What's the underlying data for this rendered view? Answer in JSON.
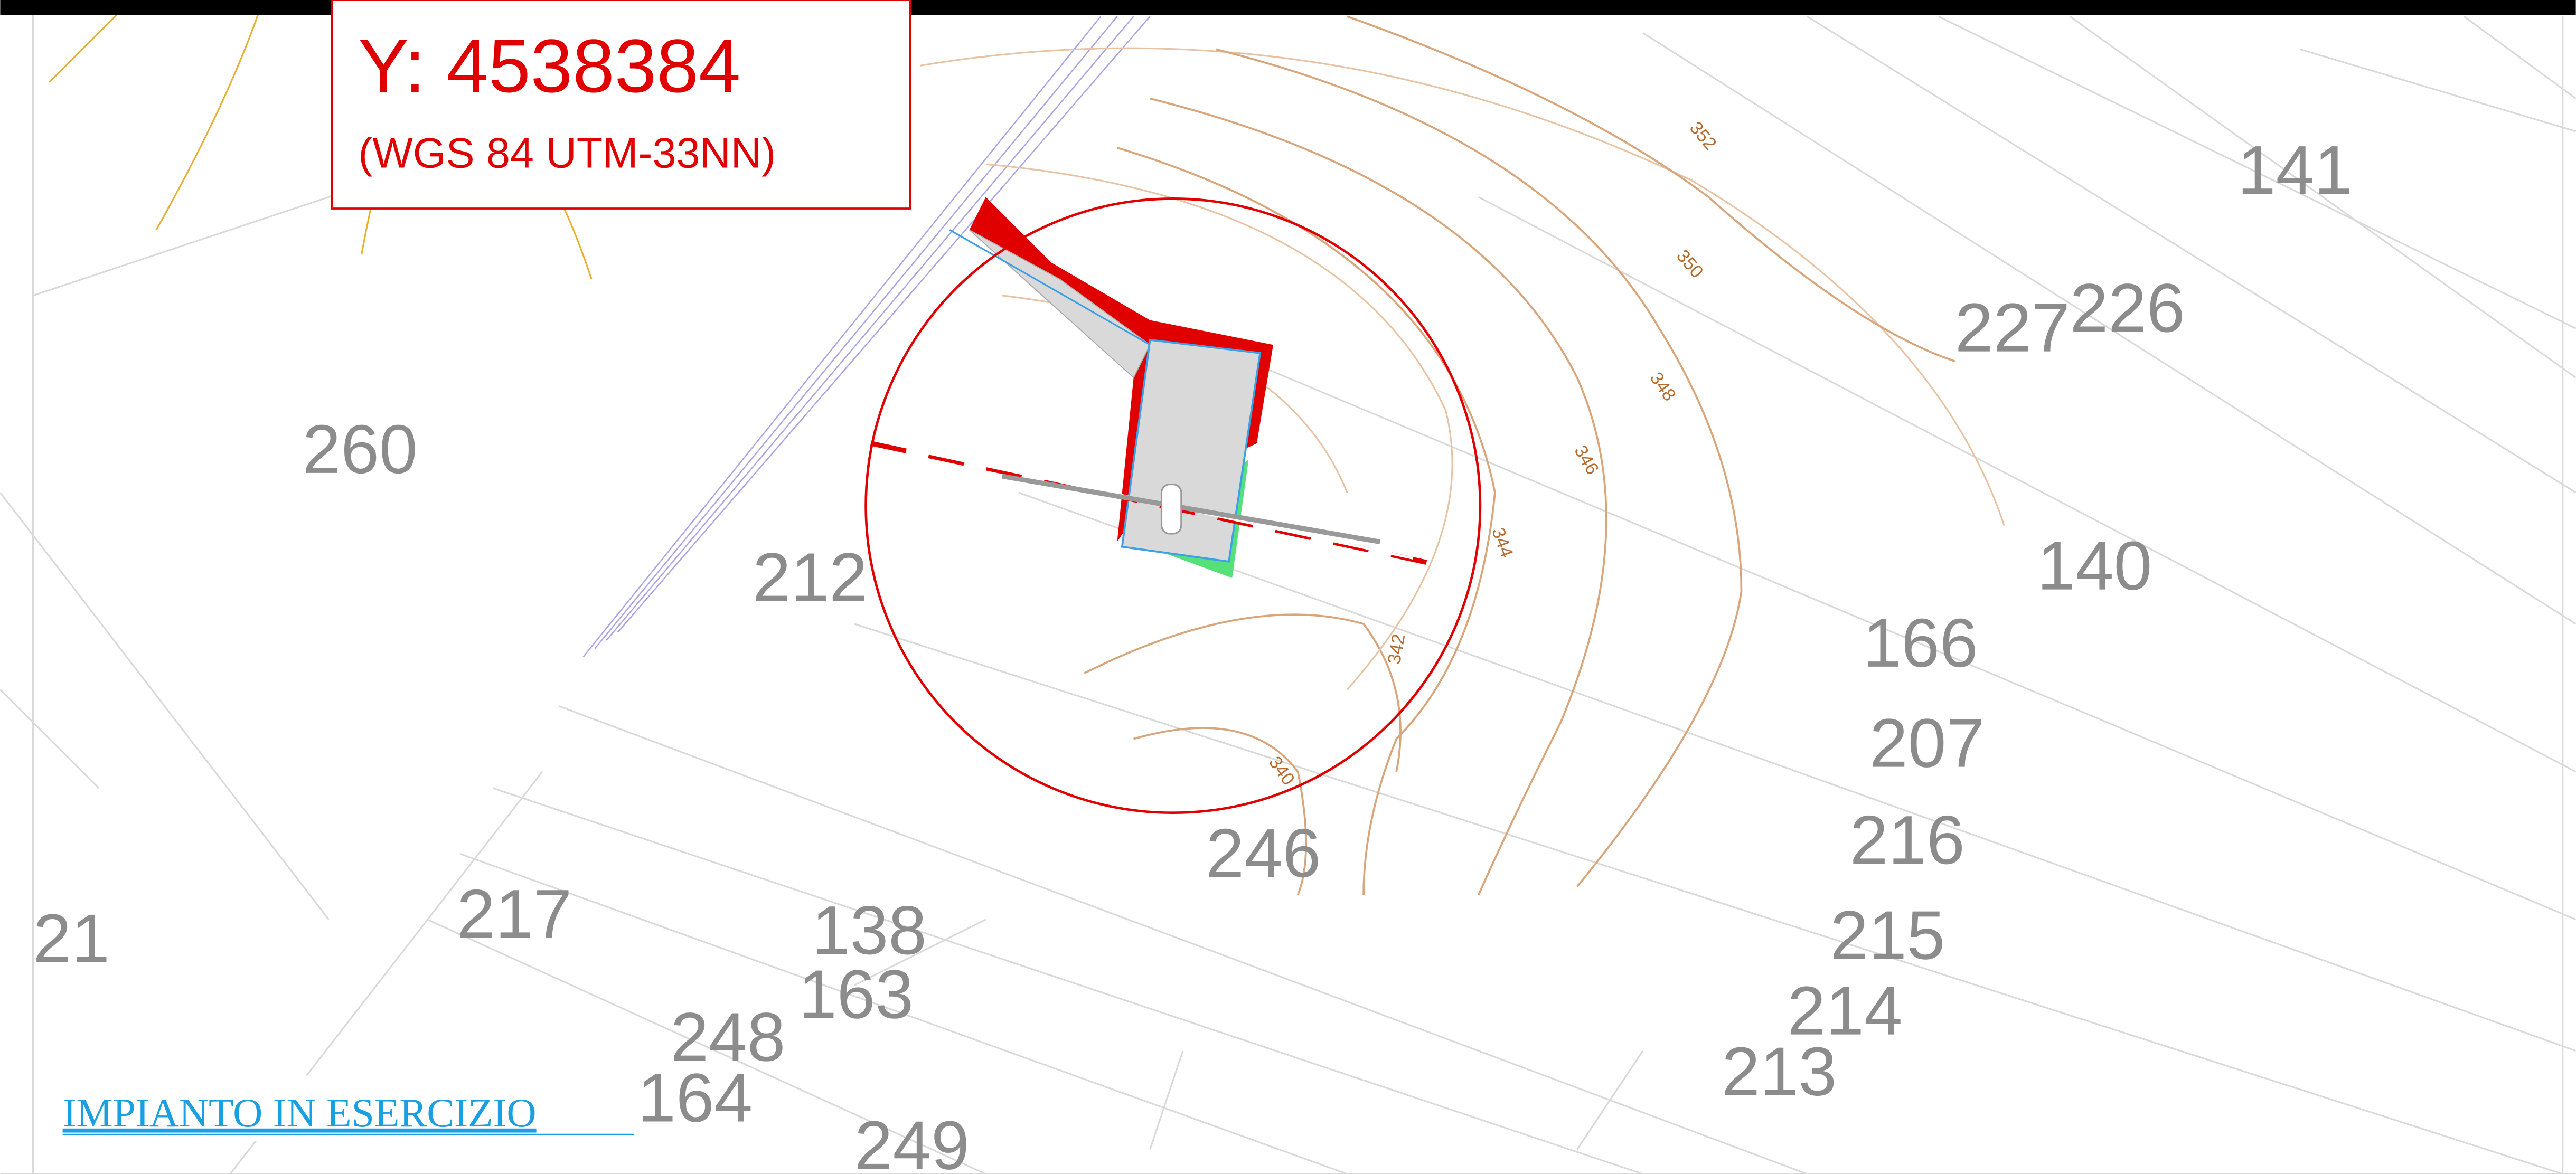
{
  "coordinate_box": {
    "y_coordinate": "Y: 4538384",
    "datum": "(WGS 84 UTM-33NN)"
  },
  "parcels": [
    "141",
    "227",
    "226",
    "260",
    "212",
    "140",
    "166",
    "207",
    "216",
    "246",
    "21",
    "217",
    "138",
    "163",
    "215",
    "214",
    "213",
    "248",
    "164",
    "249"
  ],
  "contour_labels": [
    "352",
    "350",
    "348",
    "346",
    "344",
    "342",
    "340"
  ],
  "link": "IMPIANTO IN ESERCIZIO"
}
